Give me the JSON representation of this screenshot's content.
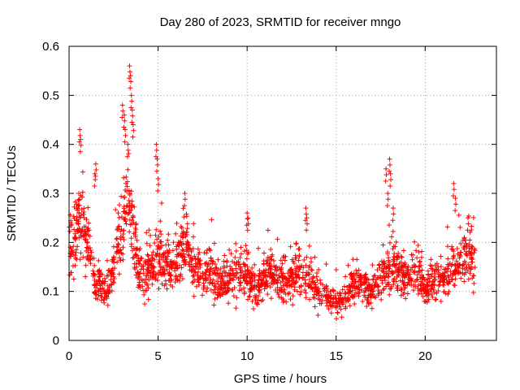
{
  "chart_data": {
    "type": "scatter",
    "title": "Day 280 of 2023, SRMTID for receiver mngo",
    "xlabel": "GPS time / hours",
    "ylabel": "SRMTID / TECUs",
    "xlim": [
      0,
      24
    ],
    "ylim": [
      0,
      0.6
    ],
    "xticks": [
      0,
      5,
      10,
      15,
      20
    ],
    "xtick_labels": [
      "0",
      "5",
      "10",
      "15",
      "20"
    ],
    "yticks": [
      0,
      0.1,
      0.2,
      0.3,
      0.4,
      0.5,
      0.6
    ],
    "ytick_labels": [
      "0",
      "0.1",
      "0.2",
      "0.3",
      "0.4",
      "0.5",
      "0.6"
    ],
    "grid": true,
    "marker": "plus",
    "color": "#ff0000",
    "x_extent": [
      0,
      22.8
    ],
    "profile": [
      [
        0.0,
        0.2
      ],
      [
        0.3,
        0.19
      ],
      [
        0.5,
        0.23
      ],
      [
        0.7,
        0.25
      ],
      [
        1.0,
        0.21
      ],
      [
        1.3,
        0.14
      ],
      [
        1.6,
        0.12
      ],
      [
        2.0,
        0.1
      ],
      [
        2.3,
        0.11
      ],
      [
        2.6,
        0.17
      ],
      [
        3.0,
        0.23
      ],
      [
        3.3,
        0.3
      ],
      [
        3.6,
        0.24
      ],
      [
        3.9,
        0.14
      ],
      [
        4.3,
        0.13
      ],
      [
        4.7,
        0.14
      ],
      [
        5.0,
        0.18
      ],
      [
        5.5,
        0.15
      ],
      [
        6.0,
        0.16
      ],
      [
        6.5,
        0.2
      ],
      [
        7.0,
        0.15
      ],
      [
        7.5,
        0.13
      ],
      [
        8.0,
        0.14
      ],
      [
        8.5,
        0.12
      ],
      [
        9.0,
        0.12
      ],
      [
        9.5,
        0.14
      ],
      [
        10.0,
        0.13
      ],
      [
        10.5,
        0.1
      ],
      [
        11.0,
        0.13
      ],
      [
        11.5,
        0.14
      ],
      [
        12.0,
        0.12
      ],
      [
        12.5,
        0.12
      ],
      [
        13.0,
        0.14
      ],
      [
        13.5,
        0.12
      ],
      [
        14.0,
        0.1
      ],
      [
        14.5,
        0.09
      ],
      [
        15.0,
        0.08
      ],
      [
        15.5,
        0.09
      ],
      [
        16.0,
        0.11
      ],
      [
        16.5,
        0.12
      ],
      [
        17.0,
        0.1
      ],
      [
        17.5,
        0.12
      ],
      [
        18.0,
        0.16
      ],
      [
        18.5,
        0.14
      ],
      [
        19.0,
        0.12
      ],
      [
        19.5,
        0.15
      ],
      [
        20.0,
        0.11
      ],
      [
        20.5,
        0.11
      ],
      [
        21.0,
        0.12
      ],
      [
        21.5,
        0.14
      ],
      [
        22.0,
        0.16
      ],
      [
        22.5,
        0.18
      ],
      [
        22.8,
        0.15
      ]
    ],
    "spikes": [
      [
        0.6,
        0.43
      ],
      [
        0.65,
        0.41
      ],
      [
        0.55,
        0.3
      ],
      [
        1.5,
        0.36
      ],
      [
        1.45,
        0.34
      ],
      [
        3.0,
        0.48
      ],
      [
        3.1,
        0.46
      ],
      [
        3.15,
        0.43
      ],
      [
        3.4,
        0.56
      ],
      [
        3.45,
        0.54
      ],
      [
        3.5,
        0.5
      ],
      [
        3.55,
        0.47
      ],
      [
        3.6,
        0.44
      ],
      [
        3.3,
        0.4
      ],
      [
        4.9,
        0.4
      ],
      [
        4.95,
        0.37
      ],
      [
        5.0,
        0.33
      ],
      [
        6.5,
        0.3
      ],
      [
        10.0,
        0.26
      ],
      [
        10.05,
        0.25
      ],
      [
        13.3,
        0.27
      ],
      [
        13.35,
        0.25
      ],
      [
        17.8,
        0.35
      ],
      [
        18.0,
        0.37
      ],
      [
        18.05,
        0.34
      ],
      [
        17.9,
        0.3
      ],
      [
        18.2,
        0.27
      ],
      [
        21.6,
        0.32
      ],
      [
        21.7,
        0.29
      ],
      [
        22.4,
        0.25
      ]
    ]
  }
}
